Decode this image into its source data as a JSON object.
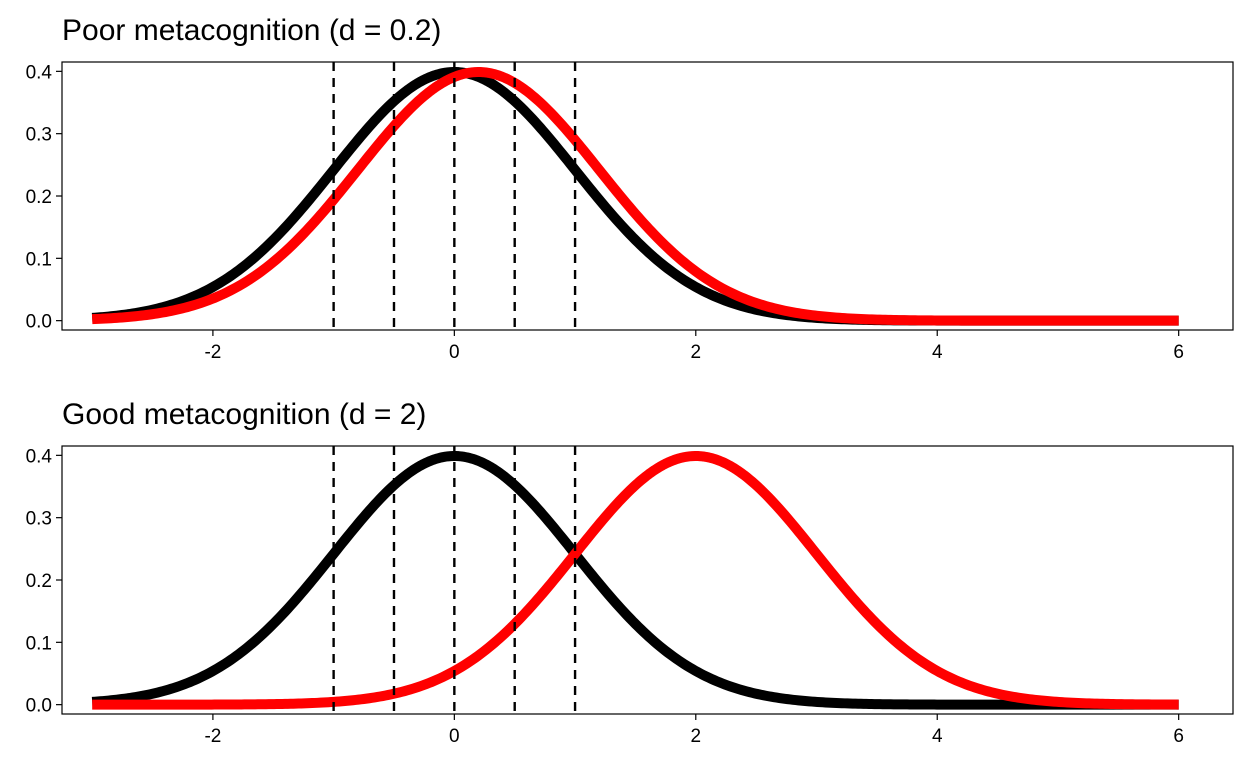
{
  "chart_data": [
    {
      "type": "line",
      "title": "Poor metacognition (d = 0.2)",
      "xlabel": "",
      "ylabel": "",
      "xlim": [
        -3.25,
        6.45
      ],
      "ylim": [
        -0.015,
        0.415
      ],
      "xticks": [
        -2,
        0,
        2,
        4,
        6
      ],
      "xtick_labels": [
        "-2",
        "0",
        "2",
        "4",
        "6"
      ],
      "yticks": [
        0.0,
        0.1,
        0.2,
        0.3,
        0.4
      ],
      "ytick_labels": [
        "0.0",
        "0.1",
        "0.2",
        "0.3",
        "0.4"
      ],
      "grid": false,
      "legend": "none",
      "x_range": [
        -3,
        6
      ],
      "criteria_vlines": [
        -1,
        -0.5,
        0,
        0.5,
        1
      ],
      "series": [
        {
          "distribution": "normal",
          "mean": 0,
          "sd": 1,
          "color": "#000000"
        },
        {
          "distribution": "normal",
          "mean": 0.2,
          "sd": 1,
          "color": "#ff0000"
        }
      ]
    },
    {
      "type": "line",
      "title": "Good metacognition (d = 2)",
      "xlabel": "",
      "ylabel": "",
      "xlim": [
        -3.25,
        6.45
      ],
      "ylim": [
        -0.015,
        0.415
      ],
      "xticks": [
        -2,
        0,
        2,
        4,
        6
      ],
      "xtick_labels": [
        "-2",
        "0",
        "2",
        "4",
        "6"
      ],
      "yticks": [
        0.0,
        0.1,
        0.2,
        0.3,
        0.4
      ],
      "ytick_labels": [
        "0.0",
        "0.1",
        "0.2",
        "0.3",
        "0.4"
      ],
      "grid": false,
      "legend": "none",
      "x_range": [
        -3,
        6
      ],
      "criteria_vlines": [
        -1,
        -0.5,
        0,
        0.5,
        1
      ],
      "series": [
        {
          "distribution": "normal",
          "mean": 0,
          "sd": 1,
          "color": "#000000"
        },
        {
          "distribution": "normal",
          "mean": 2,
          "sd": 1,
          "color": "#ff0000"
        }
      ]
    }
  ]
}
